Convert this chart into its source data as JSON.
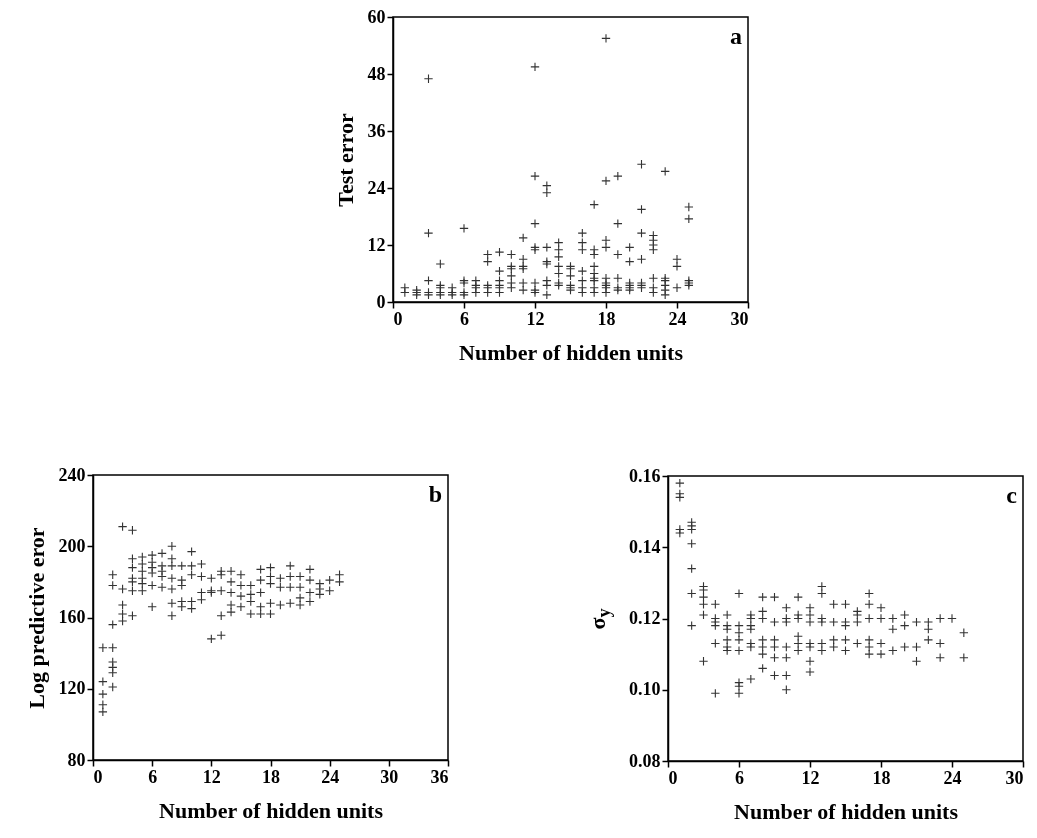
{
  "chart_data": [
    {
      "type": "scatter",
      "xlabel": "Number of hidden units",
      "ylabel": "Test error",
      "xlim": [
        0,
        30
      ],
      "ylim": [
        0,
        60
      ],
      "xticks": [
        0,
        6,
        12,
        18,
        24,
        30
      ],
      "yticks": [
        0,
        12,
        24,
        36,
        48,
        60
      ],
      "marker": "cross",
      "annotations": [
        "a"
      ],
      "series": [
        {
          "color": "#333333",
          "x": [
            1,
            1,
            2,
            2,
            2,
            3,
            3,
            3,
            3,
            3,
            4,
            4,
            4,
            4,
            4,
            5,
            5,
            5,
            6,
            6,
            6,
            6,
            6,
            7,
            7,
            7,
            7,
            8,
            8,
            8,
            8,
            8,
            9,
            9,
            9,
            9,
            9,
            9,
            10,
            10,
            10,
            10,
            10,
            10,
            11,
            11,
            11,
            11,
            11,
            11,
            12,
            12,
            12,
            12,
            12,
            12,
            12,
            12,
            13,
            13,
            13,
            13,
            13,
            13,
            13,
            13,
            14,
            14,
            14,
            14,
            14,
            14,
            14,
            15,
            15,
            15,
            15,
            15,
            15,
            16,
            16,
            16,
            16,
            16,
            16,
            16,
            17,
            17,
            17,
            17,
            17,
            17,
            17,
            17,
            17,
            18,
            18,
            18,
            18,
            18,
            18,
            18,
            18,
            18,
            19,
            19,
            19,
            19,
            19,
            19,
            20,
            20,
            20,
            20,
            20,
            20,
            21,
            21,
            21,
            21,
            21,
            21,
            21,
            22,
            22,
            22,
            22,
            22,
            22,
            22,
            23,
            23,
            23,
            23,
            23,
            23,
            24,
            24,
            24,
            25,
            25,
            25,
            25,
            25
          ],
          "values": [
            3,
            2,
            2.5,
            2,
            1.5,
            47,
            14.5,
            4.5,
            2,
            1.5,
            8,
            3.5,
            3,
            2,
            1.5,
            3,
            2,
            1.5,
            15.5,
            4.5,
            4,
            2,
            1.5,
            4.5,
            3.5,
            3,
            2,
            10,
            8.5,
            3.5,
            3,
            2,
            10.5,
            6.5,
            4.5,
            3.5,
            3,
            2,
            10,
            7.5,
            7,
            5.5,
            4,
            3,
            13.5,
            9,
            7.5,
            7,
            4,
            2.5,
            49.5,
            26.5,
            16.5,
            11.5,
            11,
            4,
            2.5,
            2,
            24.5,
            23,
            11.5,
            8.5,
            8,
            4.5,
            3.5,
            1.5,
            12.5,
            11,
            9.5,
            7.5,
            6,
            4,
            3.5,
            7.5,
            7,
            5.5,
            3.5,
            3,
            2.5,
            14.5,
            12.5,
            11,
            6.5,
            4.5,
            3,
            2,
            20.5,
            11,
            10,
            7.5,
            6,
            5,
            4.5,
            3,
            2,
            55.5,
            25.5,
            13,
            11.5,
            5,
            4,
            3.5,
            3,
            2,
            26.5,
            16.5,
            10,
            5,
            3,
            2.5,
            11.5,
            8.5,
            4,
            3.5,
            3,
            2.5,
            29,
            19.5,
            14.5,
            9,
            4,
            3.5,
            3,
            14,
            13,
            12,
            11,
            5,
            3,
            2,
            27.5,
            5,
            4.5,
            3.5,
            2.5,
            1.5,
            9,
            7.5,
            3,
            20,
            17.5,
            4.5,
            4,
            3.5
          ]
        }
      ]
    },
    {
      "type": "scatter",
      "xlabel": "Number of hidden units",
      "ylabel": "Log predictive eror",
      "xlim": [
        0,
        36
      ],
      "ylim": [
        80,
        240
      ],
      "xticks": [
        0,
        6,
        12,
        18,
        24,
        30,
        36
      ],
      "yticks": [
        80,
        120,
        160,
        200,
        240
      ],
      "marker": "cross",
      "annotations": [
        "b"
      ],
      "series": [
        {
          "color": "#333333",
          "x": [
            1,
            1,
            1,
            1,
            1,
            2,
            2,
            2,
            2,
            2,
            2,
            2,
            2,
            3,
            3,
            3,
            3,
            3,
            4,
            4,
            4,
            4,
            4,
            4,
            4,
            5,
            5,
            5,
            5,
            5,
            5,
            6,
            6,
            6,
            6,
            6,
            6,
            7,
            7,
            7,
            7,
            7,
            8,
            8,
            8,
            8,
            8,
            8,
            8,
            9,
            9,
            9,
            9,
            9,
            10,
            10,
            10,
            10,
            10,
            11,
            11,
            11,
            11,
            12,
            12,
            12,
            12,
            13,
            13,
            13,
            13,
            13,
            14,
            14,
            14,
            14,
            14,
            15,
            15,
            15,
            15,
            16,
            16,
            16,
            16,
            17,
            17,
            17,
            17,
            17,
            18,
            18,
            18,
            18,
            18,
            19,
            19,
            19,
            20,
            20,
            20,
            20,
            21,
            21,
            21,
            21,
            22,
            22,
            22,
            22,
            23,
            23,
            23,
            24,
            24,
            25,
            25
          ],
          "values": [
            143,
            124,
            117,
            111,
            107,
            184,
            178,
            143,
            156,
            135,
            132,
            129,
            121,
            211,
            176,
            167,
            162,
            158,
            209,
            193,
            188,
            182,
            180,
            175,
            161,
            194,
            190,
            186,
            182,
            179,
            175,
            195,
            191,
            188,
            185,
            178,
            166,
            196,
            189,
            186,
            183,
            177,
            200,
            193,
            189,
            182,
            176,
            168,
            161,
            189,
            181,
            178,
            169,
            166,
            197,
            189,
            184,
            169,
            165,
            190,
            183,
            174,
            170,
            182,
            175,
            174,
            148,
            186,
            184,
            175,
            161,
            150,
            186,
            180,
            174,
            167,
            163,
            184,
            178,
            172,
            166,
            178,
            173,
            169,
            162,
            187,
            181,
            174,
            166,
            162,
            188,
            183,
            179,
            168,
            162,
            182,
            177,
            167,
            189,
            183,
            177,
            168,
            183,
            177,
            171,
            167,
            187,
            181,
            174,
            169,
            179,
            176,
            173,
            181,
            175,
            184,
            180
          ]
        }
      ]
    },
    {
      "type": "scatter",
      "xlabel": "Number of hidden units",
      "ylabel": "σ$_{y}$",
      "xlim": [
        0,
        30
      ],
      "ylim": [
        0.08,
        0.16
      ],
      "xticks": [
        0,
        6,
        12,
        18,
        24,
        30
      ],
      "yticks": [
        {
          "value": 0.08,
          "label": "0.08"
        },
        {
          "value": 0.1,
          "label": "0.10"
        },
        {
          "value": 0.12,
          "label": "0.12"
        },
        {
          "value": 0.14,
          "label": "0.14"
        },
        {
          "value": 0.16,
          "label": "0.16"
        }
      ],
      "marker": "cross",
      "annotations": [
        "c"
      ],
      "series": [
        {
          "color": "#333333",
          "x": [
            1,
            1,
            1,
            1,
            1,
            2,
            2,
            2,
            2,
            2,
            2,
            2,
            3,
            3,
            3,
            3,
            3,
            3,
            4,
            4,
            4,
            4,
            4,
            4,
            5,
            5,
            5,
            5,
            5,
            5,
            6,
            6,
            6,
            6,
            6,
            6,
            6,
            6,
            7,
            7,
            7,
            7,
            7,
            7,
            7,
            8,
            8,
            8,
            8,
            8,
            8,
            8,
            9,
            9,
            9,
            9,
            9,
            9,
            10,
            10,
            10,
            10,
            10,
            10,
            10,
            11,
            11,
            11,
            11,
            11,
            11,
            12,
            12,
            12,
            12,
            12,
            12,
            12,
            13,
            13,
            13,
            13,
            13,
            13,
            14,
            14,
            14,
            14,
            15,
            15,
            15,
            15,
            15,
            16,
            16,
            16,
            16,
            17,
            17,
            17,
            17,
            17,
            17,
            18,
            18,
            18,
            18,
            19,
            19,
            19,
            20,
            20,
            20,
            21,
            21,
            21,
            22,
            22,
            22,
            23,
            23,
            23,
            24,
            25,
            25
          ],
          "values": [
            0.158,
            0.155,
            0.154,
            0.145,
            0.144,
            0.147,
            0.146,
            0.145,
            0.141,
            0.134,
            0.127,
            0.118,
            0.129,
            0.128,
            0.126,
            0.124,
            0.121,
            0.108,
            0.124,
            0.12,
            0.119,
            0.118,
            0.113,
            0.099,
            0.121,
            0.118,
            0.117,
            0.114,
            0.112,
            0.111,
            0.127,
            0.118,
            0.116,
            0.114,
            0.111,
            0.102,
            0.101,
            0.099,
            0.121,
            0.12,
            0.118,
            0.117,
            0.113,
            0.112,
            0.103,
            0.126,
            0.122,
            0.12,
            0.114,
            0.112,
            0.11,
            0.106,
            0.126,
            0.119,
            0.114,
            0.112,
            0.109,
            0.104,
            0.123,
            0.12,
            0.119,
            0.112,
            0.109,
            0.104,
            0.1,
            0.126,
            0.121,
            0.12,
            0.115,
            0.113,
            0.111,
            0.123,
            0.121,
            0.119,
            0.113,
            0.112,
            0.108,
            0.105,
            0.129,
            0.127,
            0.12,
            0.119,
            0.113,
            0.111,
            0.124,
            0.119,
            0.114,
            0.112,
            0.124,
            0.119,
            0.118,
            0.114,
            0.111,
            0.122,
            0.121,
            0.119,
            0.113,
            0.127,
            0.124,
            0.12,
            0.114,
            0.112,
            0.11,
            0.123,
            0.12,
            0.113,
            0.11,
            0.12,
            0.117,
            0.111,
            0.121,
            0.118,
            0.112,
            0.119,
            0.112,
            0.108,
            0.119,
            0.117,
            0.114,
            0.12,
            0.113,
            0.109,
            0.12,
            0.116,
            0.109
          ]
        }
      ]
    }
  ]
}
